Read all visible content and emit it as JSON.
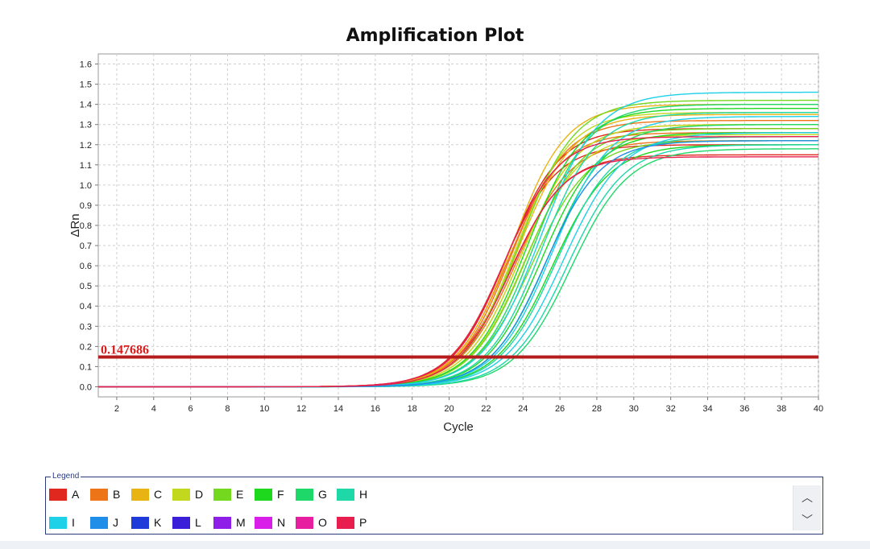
{
  "chart_data": {
    "type": "line",
    "title": "Amplification Plot",
    "xlabel": "Cycle",
    "ylabel": "ΔRn",
    "xlim": [
      1,
      40
    ],
    "ylim": [
      -0.05,
      1.65
    ],
    "x_ticks": [
      2,
      4,
      6,
      8,
      10,
      12,
      14,
      16,
      18,
      20,
      22,
      24,
      26,
      28,
      30,
      32,
      34,
      36,
      38,
      40
    ],
    "y_ticks": [
      "0.0",
      "0.1",
      "0.2",
      "0.3",
      "0.4",
      "0.5",
      "0.6",
      "0.7",
      "0.8",
      "0.9",
      "1.0",
      "1.1",
      "1.2",
      "1.3",
      "1.4",
      "1.5",
      "1.6"
    ],
    "grid": true,
    "threshold": {
      "value": 0.147686,
      "label": "0.147686",
      "color": "#b71c1c"
    },
    "curve_model": "sigmoid: dRn = plateau / (1 + exp(-(cycle - midpoint) / slope))",
    "series": [
      {
        "name": "A",
        "color": "#e0281e",
        "curves": [
          {
            "plateau": 1.2,
            "midpoint": 22.9,
            "slope": 1.45
          },
          {
            "plateau": 1.28,
            "midpoint": 23.1,
            "slope": 1.45
          },
          {
            "plateau": 1.15,
            "midpoint": 23.3,
            "slope": 1.5
          }
        ]
      },
      {
        "name": "B",
        "color": "#ee7418",
        "curves": [
          {
            "plateau": 1.26,
            "midpoint": 23.2,
            "slope": 1.45
          },
          {
            "plateau": 1.32,
            "midpoint": 23.4,
            "slope": 1.45
          },
          {
            "plateau": 1.22,
            "midpoint": 23.6,
            "slope": 1.5
          }
        ]
      },
      {
        "name": "C",
        "color": "#e8b414",
        "curves": [
          {
            "plateau": 1.4,
            "midpoint": 23.4,
            "slope": 1.45
          },
          {
            "plateau": 1.35,
            "midpoint": 23.7,
            "slope": 1.5
          },
          {
            "plateau": 1.3,
            "midpoint": 23.9,
            "slope": 1.5
          }
        ]
      },
      {
        "name": "D",
        "color": "#c2d81e",
        "curves": [
          {
            "plateau": 1.36,
            "midpoint": 23.6,
            "slope": 1.45
          },
          {
            "plateau": 1.3,
            "midpoint": 23.9,
            "slope": 1.5
          },
          {
            "plateau": 1.25,
            "midpoint": 24.1,
            "slope": 1.5
          }
        ]
      },
      {
        "name": "E",
        "color": "#74d81e",
        "curves": [
          {
            "plateau": 1.42,
            "midpoint": 23.8,
            "slope": 1.5
          },
          {
            "plateau": 1.28,
            "midpoint": 24.2,
            "slope": 1.5
          },
          {
            "plateau": 1.22,
            "midpoint": 24.5,
            "slope": 1.55
          }
        ]
      },
      {
        "name": "F",
        "color": "#1ed81e",
        "curves": [
          {
            "plateau": 1.38,
            "midpoint": 24.2,
            "slope": 1.5
          },
          {
            "plateau": 1.26,
            "midpoint": 25.0,
            "slope": 1.5
          },
          {
            "plateau": 1.2,
            "midpoint": 25.6,
            "slope": 1.55
          }
        ]
      },
      {
        "name": "G",
        "color": "#1ed86a",
        "curves": [
          {
            "plateau": 1.4,
            "midpoint": 24.6,
            "slope": 1.5
          },
          {
            "plateau": 1.3,
            "midpoint": 25.4,
            "slope": 1.55
          },
          {
            "plateau": 1.18,
            "midpoint": 26.6,
            "slope": 1.55
          }
        ]
      },
      {
        "name": "H",
        "color": "#1ed8a8",
        "curves": [
          {
            "plateau": 1.36,
            "midpoint": 25.0,
            "slope": 1.5
          },
          {
            "plateau": 1.24,
            "midpoint": 25.8,
            "slope": 1.55
          },
          {
            "plateau": 1.2,
            "midpoint": 26.4,
            "slope": 1.55
          }
        ]
      },
      {
        "name": "I",
        "color": "#1ed0e8",
        "curves": [
          {
            "plateau": 1.46,
            "midpoint": 24.9,
            "slope": 1.55
          },
          {
            "plateau": 1.34,
            "midpoint": 25.6,
            "slope": 1.55
          },
          {
            "plateau": 1.26,
            "midpoint": 26.2,
            "slope": 1.6
          }
        ]
      },
      {
        "name": "J",
        "color": "#1e8ee8",
        "curves": [
          {
            "plateau": 1.22,
            "midpoint": 25.2,
            "slope": 1.5
          }
        ]
      },
      {
        "name": "K",
        "color": "#1e3ad8",
        "curves": []
      },
      {
        "name": "L",
        "color": "#3a1ed8",
        "curves": []
      },
      {
        "name": "M",
        "color": "#8e1ee8",
        "curves": []
      },
      {
        "name": "N",
        "color": "#d81ee8",
        "curves": []
      },
      {
        "name": "O",
        "color": "#e81ea0",
        "curves": []
      },
      {
        "name": "P",
        "color": "#e81e4e",
        "curves": [
          {
            "plateau": 1.14,
            "midpoint": 23.3,
            "slope": 1.45
          },
          {
            "plateau": 1.24,
            "midpoint": 23.0,
            "slope": 1.45
          }
        ]
      }
    ]
  },
  "legend": {
    "title": "Legend",
    "items": [
      {
        "label": "A",
        "color": "#e0281e"
      },
      {
        "label": "B",
        "color": "#ee7418"
      },
      {
        "label": "C",
        "color": "#e8b414"
      },
      {
        "label": "D",
        "color": "#c2d81e"
      },
      {
        "label": "E",
        "color": "#74d81e"
      },
      {
        "label": "F",
        "color": "#1ed81e"
      },
      {
        "label": "G",
        "color": "#1ed86a"
      },
      {
        "label": "H",
        "color": "#1ed8a8"
      },
      {
        "label": "I",
        "color": "#1ed0e8"
      },
      {
        "label": "J",
        "color": "#1e8ee8"
      },
      {
        "label": "K",
        "color": "#1e3ad8"
      },
      {
        "label": "L",
        "color": "#3a1ed8"
      },
      {
        "label": "M",
        "color": "#8e1ee8"
      },
      {
        "label": "N",
        "color": "#d81ee8"
      },
      {
        "label": "O",
        "color": "#e81ea0"
      },
      {
        "label": "P",
        "color": "#e81e4e"
      }
    ],
    "scroll_up_icon": "chevron-up-icon",
    "scroll_down_icon": "chevron-down-icon",
    "scroll_up_glyph": "︿",
    "scroll_down_glyph": "﹀"
  }
}
